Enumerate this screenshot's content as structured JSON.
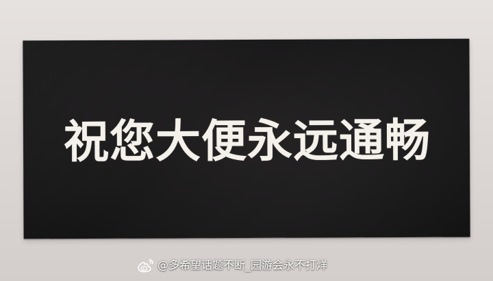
{
  "sign": {
    "text": "祝您大便永远通畅"
  },
  "watermark": {
    "icon": "weibo-icon",
    "text": "@多希望话题不断_园游会永不打烊"
  },
  "colors": {
    "background": "#dcd6d4",
    "sign": "#1b1a1b",
    "sign_text": "#f4f1ea",
    "watermark_text": "#ffffff"
  }
}
